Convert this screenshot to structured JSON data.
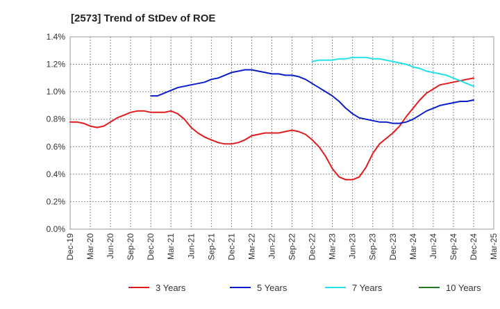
{
  "chart_data": {
    "type": "line",
    "title": "[2573]  Trend of StDev of ROE",
    "xlabel": "",
    "ylabel": "",
    "ylim": [
      0,
      1.4
    ],
    "y_ticks": [
      "0.0%",
      "0.2%",
      "0.4%",
      "0.6%",
      "0.8%",
      "1.0%",
      "1.2%",
      "1.4%"
    ],
    "x_ticks": [
      "Dec-19",
      "Mar-20",
      "Jun-20",
      "Sep-20",
      "Dec-20",
      "Mar-21",
      "Jun-21",
      "Sep-21",
      "Dec-21",
      "Mar-22",
      "Jun-22",
      "Sep-22",
      "Dec-22",
      "Mar-23",
      "Jun-23",
      "Sep-23",
      "Dec-23",
      "Mar-24",
      "Jun-24",
      "Sep-24",
      "Dec-24",
      "Mar-25"
    ],
    "grid": true,
    "legend_position": "bottom",
    "series": [
      {
        "name": "3 Years",
        "color": "#e31a1c",
        "points": [
          [
            "Dec-19",
            0.78
          ],
          [
            "Jan-20",
            0.78
          ],
          [
            "Feb-20",
            0.77
          ],
          [
            "Mar-20",
            0.75
          ],
          [
            "Apr-20",
            0.74
          ],
          [
            "May-20",
            0.75
          ],
          [
            "Jun-20",
            0.78
          ],
          [
            "Jul-20",
            0.81
          ],
          [
            "Aug-20",
            0.83
          ],
          [
            "Sep-20",
            0.85
          ],
          [
            "Oct-20",
            0.86
          ],
          [
            "Nov-20",
            0.86
          ],
          [
            "Dec-20",
            0.85
          ],
          [
            "Jan-21",
            0.85
          ],
          [
            "Feb-21",
            0.85
          ],
          [
            "Mar-21",
            0.86
          ],
          [
            "Apr-21",
            0.84
          ],
          [
            "May-21",
            0.8
          ],
          [
            "Jun-21",
            0.74
          ],
          [
            "Jul-21",
            0.7
          ],
          [
            "Aug-21",
            0.67
          ],
          [
            "Sep-21",
            0.65
          ],
          [
            "Oct-21",
            0.63
          ],
          [
            "Nov-21",
            0.62
          ],
          [
            "Dec-21",
            0.62
          ],
          [
            "Jan-22",
            0.63
          ],
          [
            "Feb-22",
            0.65
          ],
          [
            "Mar-22",
            0.68
          ],
          [
            "Apr-22",
            0.69
          ],
          [
            "May-22",
            0.7
          ],
          [
            "Jun-22",
            0.7
          ],
          [
            "Jul-22",
            0.7
          ],
          [
            "Aug-22",
            0.71
          ],
          [
            "Sep-22",
            0.72
          ],
          [
            "Oct-22",
            0.71
          ],
          [
            "Nov-22",
            0.69
          ],
          [
            "Dec-22",
            0.65
          ],
          [
            "Jan-23",
            0.6
          ],
          [
            "Feb-23",
            0.53
          ],
          [
            "Mar-23",
            0.44
          ],
          [
            "Apr-23",
            0.38
          ],
          [
            "May-23",
            0.36
          ],
          [
            "Jun-23",
            0.36
          ],
          [
            "Jul-23",
            0.38
          ],
          [
            "Aug-23",
            0.45
          ],
          [
            "Sep-23",
            0.55
          ],
          [
            "Oct-23",
            0.62
          ],
          [
            "Nov-23",
            0.66
          ],
          [
            "Dec-23",
            0.7
          ],
          [
            "Jan-24",
            0.75
          ],
          [
            "Feb-24",
            0.82
          ],
          [
            "Mar-24",
            0.88
          ],
          [
            "Apr-24",
            0.94
          ],
          [
            "May-24",
            0.99
          ],
          [
            "Jun-24",
            1.02
          ],
          [
            "Jul-24",
            1.05
          ],
          [
            "Aug-24",
            1.06
          ],
          [
            "Sep-24",
            1.07
          ],
          [
            "Oct-24",
            1.08
          ],
          [
            "Nov-24",
            1.09
          ],
          [
            "Dec-24",
            1.1
          ]
        ]
      },
      {
        "name": "5 Years",
        "color": "#0a1ec8",
        "points": [
          [
            "Dec-20",
            0.97
          ],
          [
            "Jan-21",
            0.97
          ],
          [
            "Feb-21",
            0.99
          ],
          [
            "Mar-21",
            1.01
          ],
          [
            "Apr-21",
            1.03
          ],
          [
            "May-21",
            1.04
          ],
          [
            "Jun-21",
            1.05
          ],
          [
            "Jul-21",
            1.06
          ],
          [
            "Aug-21",
            1.07
          ],
          [
            "Sep-21",
            1.09
          ],
          [
            "Oct-21",
            1.1
          ],
          [
            "Nov-21",
            1.12
          ],
          [
            "Dec-21",
            1.14
          ],
          [
            "Jan-22",
            1.15
          ],
          [
            "Feb-22",
            1.16
          ],
          [
            "Mar-22",
            1.16
          ],
          [
            "Apr-22",
            1.15
          ],
          [
            "May-22",
            1.14
          ],
          [
            "Jun-22",
            1.13
          ],
          [
            "Jul-22",
            1.13
          ],
          [
            "Aug-22",
            1.12
          ],
          [
            "Sep-22",
            1.12
          ],
          [
            "Oct-22",
            1.11
          ],
          [
            "Nov-22",
            1.09
          ],
          [
            "Dec-22",
            1.06
          ],
          [
            "Jan-23",
            1.03
          ],
          [
            "Feb-23",
            1.0
          ],
          [
            "Mar-23",
            0.97
          ],
          [
            "Apr-23",
            0.93
          ],
          [
            "May-23",
            0.88
          ],
          [
            "Jun-23",
            0.84
          ],
          [
            "Jul-23",
            0.81
          ],
          [
            "Aug-23",
            0.8
          ],
          [
            "Sep-23",
            0.79
          ],
          [
            "Oct-23",
            0.78
          ],
          [
            "Nov-23",
            0.78
          ],
          [
            "Dec-23",
            0.77
          ],
          [
            "Jan-24",
            0.77
          ],
          [
            "Feb-24",
            0.78
          ],
          [
            "Mar-24",
            0.8
          ],
          [
            "Apr-24",
            0.83
          ],
          [
            "May-24",
            0.86
          ],
          [
            "Jun-24",
            0.88
          ],
          [
            "Jul-24",
            0.9
          ],
          [
            "Aug-24",
            0.91
          ],
          [
            "Sep-24",
            0.92
          ],
          [
            "Oct-24",
            0.93
          ],
          [
            "Nov-24",
            0.93
          ],
          [
            "Dec-24",
            0.94
          ]
        ]
      },
      {
        "name": "7 Years",
        "color": "#22e0e8",
        "points": [
          [
            "Dec-22",
            1.22
          ],
          [
            "Jan-23",
            1.23
          ],
          [
            "Feb-23",
            1.23
          ],
          [
            "Mar-23",
            1.23
          ],
          [
            "Apr-23",
            1.24
          ],
          [
            "May-23",
            1.24
          ],
          [
            "Jun-23",
            1.25
          ],
          [
            "Jul-23",
            1.25
          ],
          [
            "Aug-23",
            1.25
          ],
          [
            "Sep-23",
            1.24
          ],
          [
            "Oct-23",
            1.24
          ],
          [
            "Nov-23",
            1.23
          ],
          [
            "Dec-23",
            1.22
          ],
          [
            "Jan-24",
            1.21
          ],
          [
            "Feb-24",
            1.2
          ],
          [
            "Mar-24",
            1.18
          ],
          [
            "Apr-24",
            1.17
          ],
          [
            "May-24",
            1.15
          ],
          [
            "Jun-24",
            1.14
          ],
          [
            "Jul-24",
            1.13
          ],
          [
            "Aug-24",
            1.12
          ],
          [
            "Sep-24",
            1.1
          ],
          [
            "Oct-24",
            1.08
          ],
          [
            "Nov-24",
            1.06
          ],
          [
            "Dec-24",
            1.04
          ]
        ]
      },
      {
        "name": "10 Years",
        "color": "#1e7a1e",
        "points": []
      }
    ]
  }
}
